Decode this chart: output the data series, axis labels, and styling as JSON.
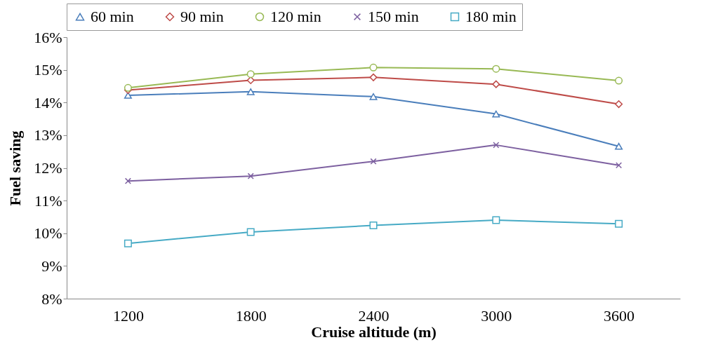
{
  "chart_data": {
    "type": "line",
    "xlabel": "Cruise altitude (m)",
    "ylabel": "Fuel saving",
    "categories": [
      "1200",
      "1800",
      "2400",
      "3000",
      "3600"
    ],
    "ylim": [
      8,
      16
    ],
    "yticks": [
      {
        "value": 8,
        "label": "8%"
      },
      {
        "value": 9,
        "label": "9%"
      },
      {
        "value": 10,
        "label": "10%"
      },
      {
        "value": 11,
        "label": "11%"
      },
      {
        "value": 12,
        "label": "12%"
      },
      {
        "value": 13,
        "label": "13%"
      },
      {
        "value": 14,
        "label": "14%"
      },
      {
        "value": 15,
        "label": "15%"
      },
      {
        "value": 16,
        "label": "16%"
      }
    ],
    "grid": false,
    "legend": "top",
    "line_style": "solid",
    "series": [
      {
        "name": "60 min",
        "color": "#4a7ebb",
        "marker": "triangle",
        "values": [
          14.22,
          14.33,
          14.18,
          13.65,
          12.66
        ]
      },
      {
        "name": "90 min",
        "color": "#be4b48",
        "marker": "diamond",
        "values": [
          14.38,
          14.68,
          14.77,
          14.56,
          13.95
        ]
      },
      {
        "name": "120 min",
        "color": "#98b954",
        "marker": "circle",
        "values": [
          14.45,
          14.87,
          15.07,
          15.03,
          14.67
        ]
      },
      {
        "name": "150 min",
        "color": "#7d60a0",
        "marker": "cross",
        "values": [
          11.6,
          11.75,
          12.2,
          12.7,
          12.08
        ]
      },
      {
        "name": "180 min",
        "color": "#46aac5",
        "marker": "square",
        "values": [
          9.69,
          10.04,
          10.24,
          10.4,
          10.29
        ]
      }
    ]
  }
}
